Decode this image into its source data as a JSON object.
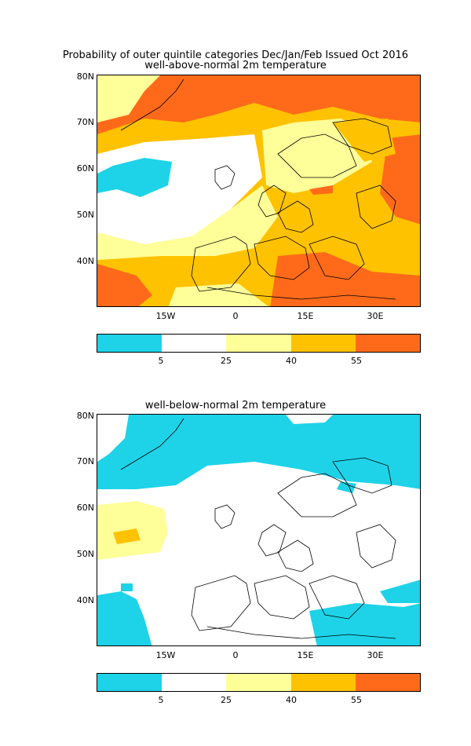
{
  "title_line1": "Probability of outer quintile categories Dec/Jan/Feb Issued Oct 2016",
  "panels": [
    {
      "subtitle": "well-above-normal 2m temperature"
    },
    {
      "subtitle": "well-below-normal 2m temperature"
    }
  ],
  "lat_labels": [
    "80N",
    "70N",
    "60N",
    "50N",
    "40N"
  ],
  "lon_labels": [
    "15W",
    "0",
    "15E",
    "30E"
  ],
  "colorbar": {
    "labels": [
      "5",
      "25",
      "40",
      "55"
    ],
    "colors": [
      "#1ed3e8",
      "#ffffff",
      "#ffff99",
      "#ffc200",
      "#ff6a1a"
    ]
  }
}
